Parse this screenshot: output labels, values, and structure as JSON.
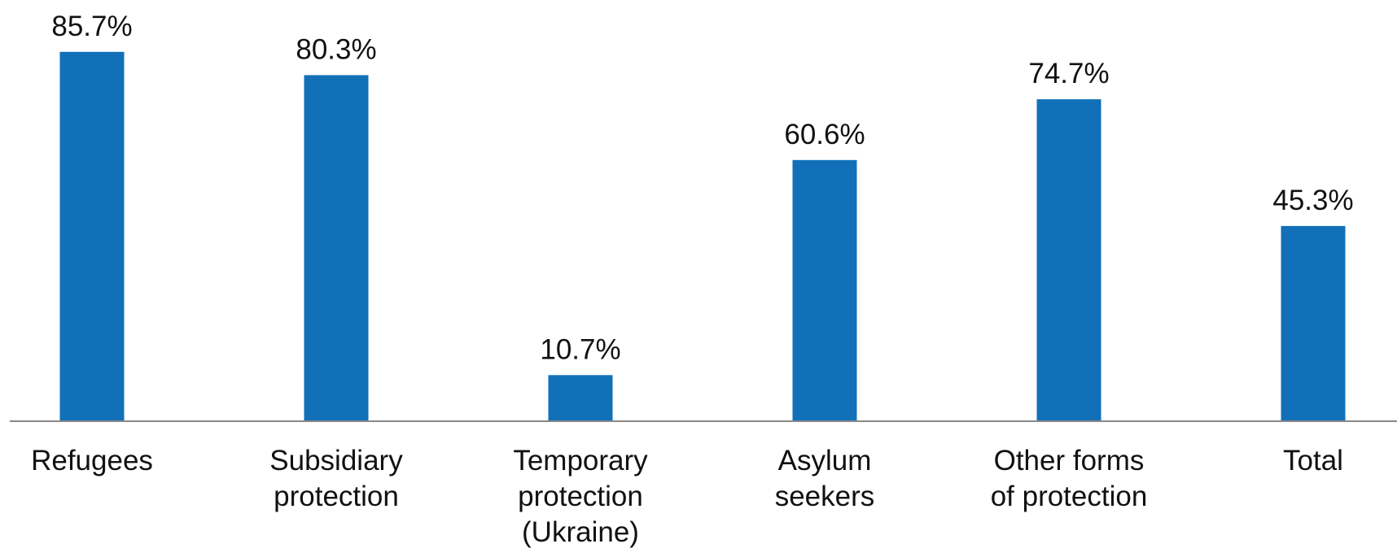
{
  "chart_data": {
    "type": "bar",
    "title": "",
    "xlabel": "",
    "ylabel": "",
    "ylim": [
      0,
      100
    ],
    "grid": false,
    "legend": "none",
    "bar_color": "#1170b8",
    "axis_color": "#888888",
    "categories": [
      [
        "Refugees"
      ],
      [
        "Subsidiary",
        "protection"
      ],
      [
        "Temporary",
        "protection",
        "(Ukraine)"
      ],
      [
        "Asylum",
        "seekers"
      ],
      [
        "Other forms",
        "of protection"
      ],
      [
        "Total"
      ]
    ],
    "values": [
      85.7,
      80.3,
      10.7,
      60.6,
      74.7,
      45.3
    ],
    "value_labels": [
      "85.7%",
      "80.3%",
      "10.7%",
      "60.6%",
      "74.7%",
      "45.3%"
    ]
  }
}
